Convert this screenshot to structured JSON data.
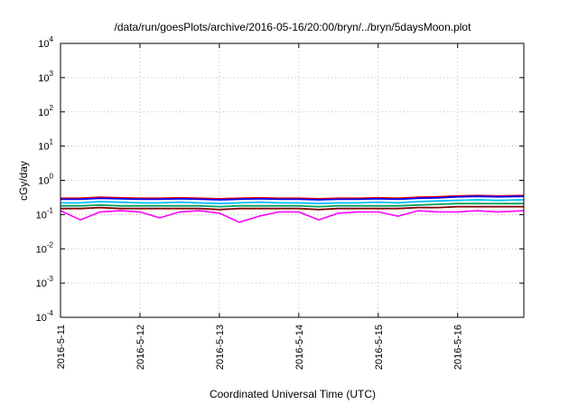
{
  "chart_data": {
    "type": "line",
    "title": "/data/run/goesPlots/archive/2016-05-16/20:00/bryn/../bryn/5daysMoon.plot",
    "xlabel": "Coordinated Universal Time (UTC)",
    "ylabel": "cGy/day",
    "y_scale": "log",
    "ylim": [
      0.0001,
      10000
    ],
    "y_ticks": [
      {
        "base": "10",
        "exp": "-4",
        "value": 0.0001
      },
      {
        "base": "10",
        "exp": "-3",
        "value": 0.001
      },
      {
        "base": "10",
        "exp": "-2",
        "value": 0.01
      },
      {
        "base": "10",
        "exp": "-1",
        "value": 0.1
      },
      {
        "base": "10",
        "exp": "0",
        "value": 1
      },
      {
        "base": "10",
        "exp": "1",
        "value": 10
      },
      {
        "base": "10",
        "exp": "2",
        "value": 100
      },
      {
        "base": "10",
        "exp": "3",
        "value": 1000
      },
      {
        "base": "10",
        "exp": "4",
        "value": 10000
      }
    ],
    "xlim": [
      "2016-05-11",
      "2016-05-16 20:00"
    ],
    "x_ticks": [
      "2016-5-11",
      "2016-5-12",
      "2016-5-13",
      "2016-5-14",
      "2016-5-15",
      "2016-5-16"
    ],
    "grid": true,
    "legend": "none",
    "x_days": [
      0,
      0.25,
      0.5,
      0.75,
      1,
      1.25,
      1.5,
      1.75,
      2,
      2.25,
      2.5,
      2.75,
      3,
      3.25,
      3.5,
      3.75,
      4,
      4.25,
      4.5,
      4.75,
      5,
      5.25,
      5.5,
      5.833
    ],
    "series": [
      {
        "color": "#ff0000",
        "values": [
          0.3,
          0.3,
          0.32,
          0.31,
          0.3,
          0.3,
          0.31,
          0.3,
          0.29,
          0.3,
          0.31,
          0.3,
          0.3,
          0.29,
          0.3,
          0.3,
          0.31,
          0.3,
          0.32,
          0.33,
          0.35,
          0.36,
          0.35,
          0.36
        ]
      },
      {
        "color": "#0000ff",
        "values": [
          0.28,
          0.28,
          0.3,
          0.29,
          0.28,
          0.28,
          0.29,
          0.28,
          0.27,
          0.28,
          0.29,
          0.28,
          0.28,
          0.27,
          0.28,
          0.28,
          0.29,
          0.28,
          0.3,
          0.31,
          0.33,
          0.34,
          0.33,
          0.34
        ]
      },
      {
        "color": "#00bfff",
        "values": [
          0.22,
          0.22,
          0.24,
          0.23,
          0.22,
          0.22,
          0.23,
          0.22,
          0.21,
          0.22,
          0.23,
          0.22,
          0.22,
          0.21,
          0.22,
          0.22,
          0.23,
          0.22,
          0.24,
          0.25,
          0.26,
          0.27,
          0.26,
          0.27
        ]
      },
      {
        "color": "#00a060",
        "values": [
          0.18,
          0.18,
          0.19,
          0.18,
          0.18,
          0.18,
          0.18,
          0.18,
          0.17,
          0.18,
          0.18,
          0.18,
          0.18,
          0.17,
          0.18,
          0.18,
          0.18,
          0.18,
          0.19,
          0.2,
          0.21,
          0.21,
          0.21,
          0.21
        ]
      },
      {
        "color": "#800000",
        "values": [
          0.15,
          0.15,
          0.16,
          0.15,
          0.15,
          0.15,
          0.15,
          0.15,
          0.14,
          0.15,
          0.15,
          0.15,
          0.15,
          0.14,
          0.15,
          0.15,
          0.15,
          0.15,
          0.16,
          0.16,
          0.17,
          0.17,
          0.17,
          0.17
        ]
      },
      {
        "color": "#ff00ff",
        "values": [
          0.13,
          0.07,
          0.12,
          0.13,
          0.12,
          0.08,
          0.12,
          0.13,
          0.11,
          0.06,
          0.09,
          0.12,
          0.12,
          0.07,
          0.11,
          0.12,
          0.12,
          0.09,
          0.13,
          0.12,
          0.12,
          0.13,
          0.12,
          0.13
        ]
      }
    ]
  }
}
